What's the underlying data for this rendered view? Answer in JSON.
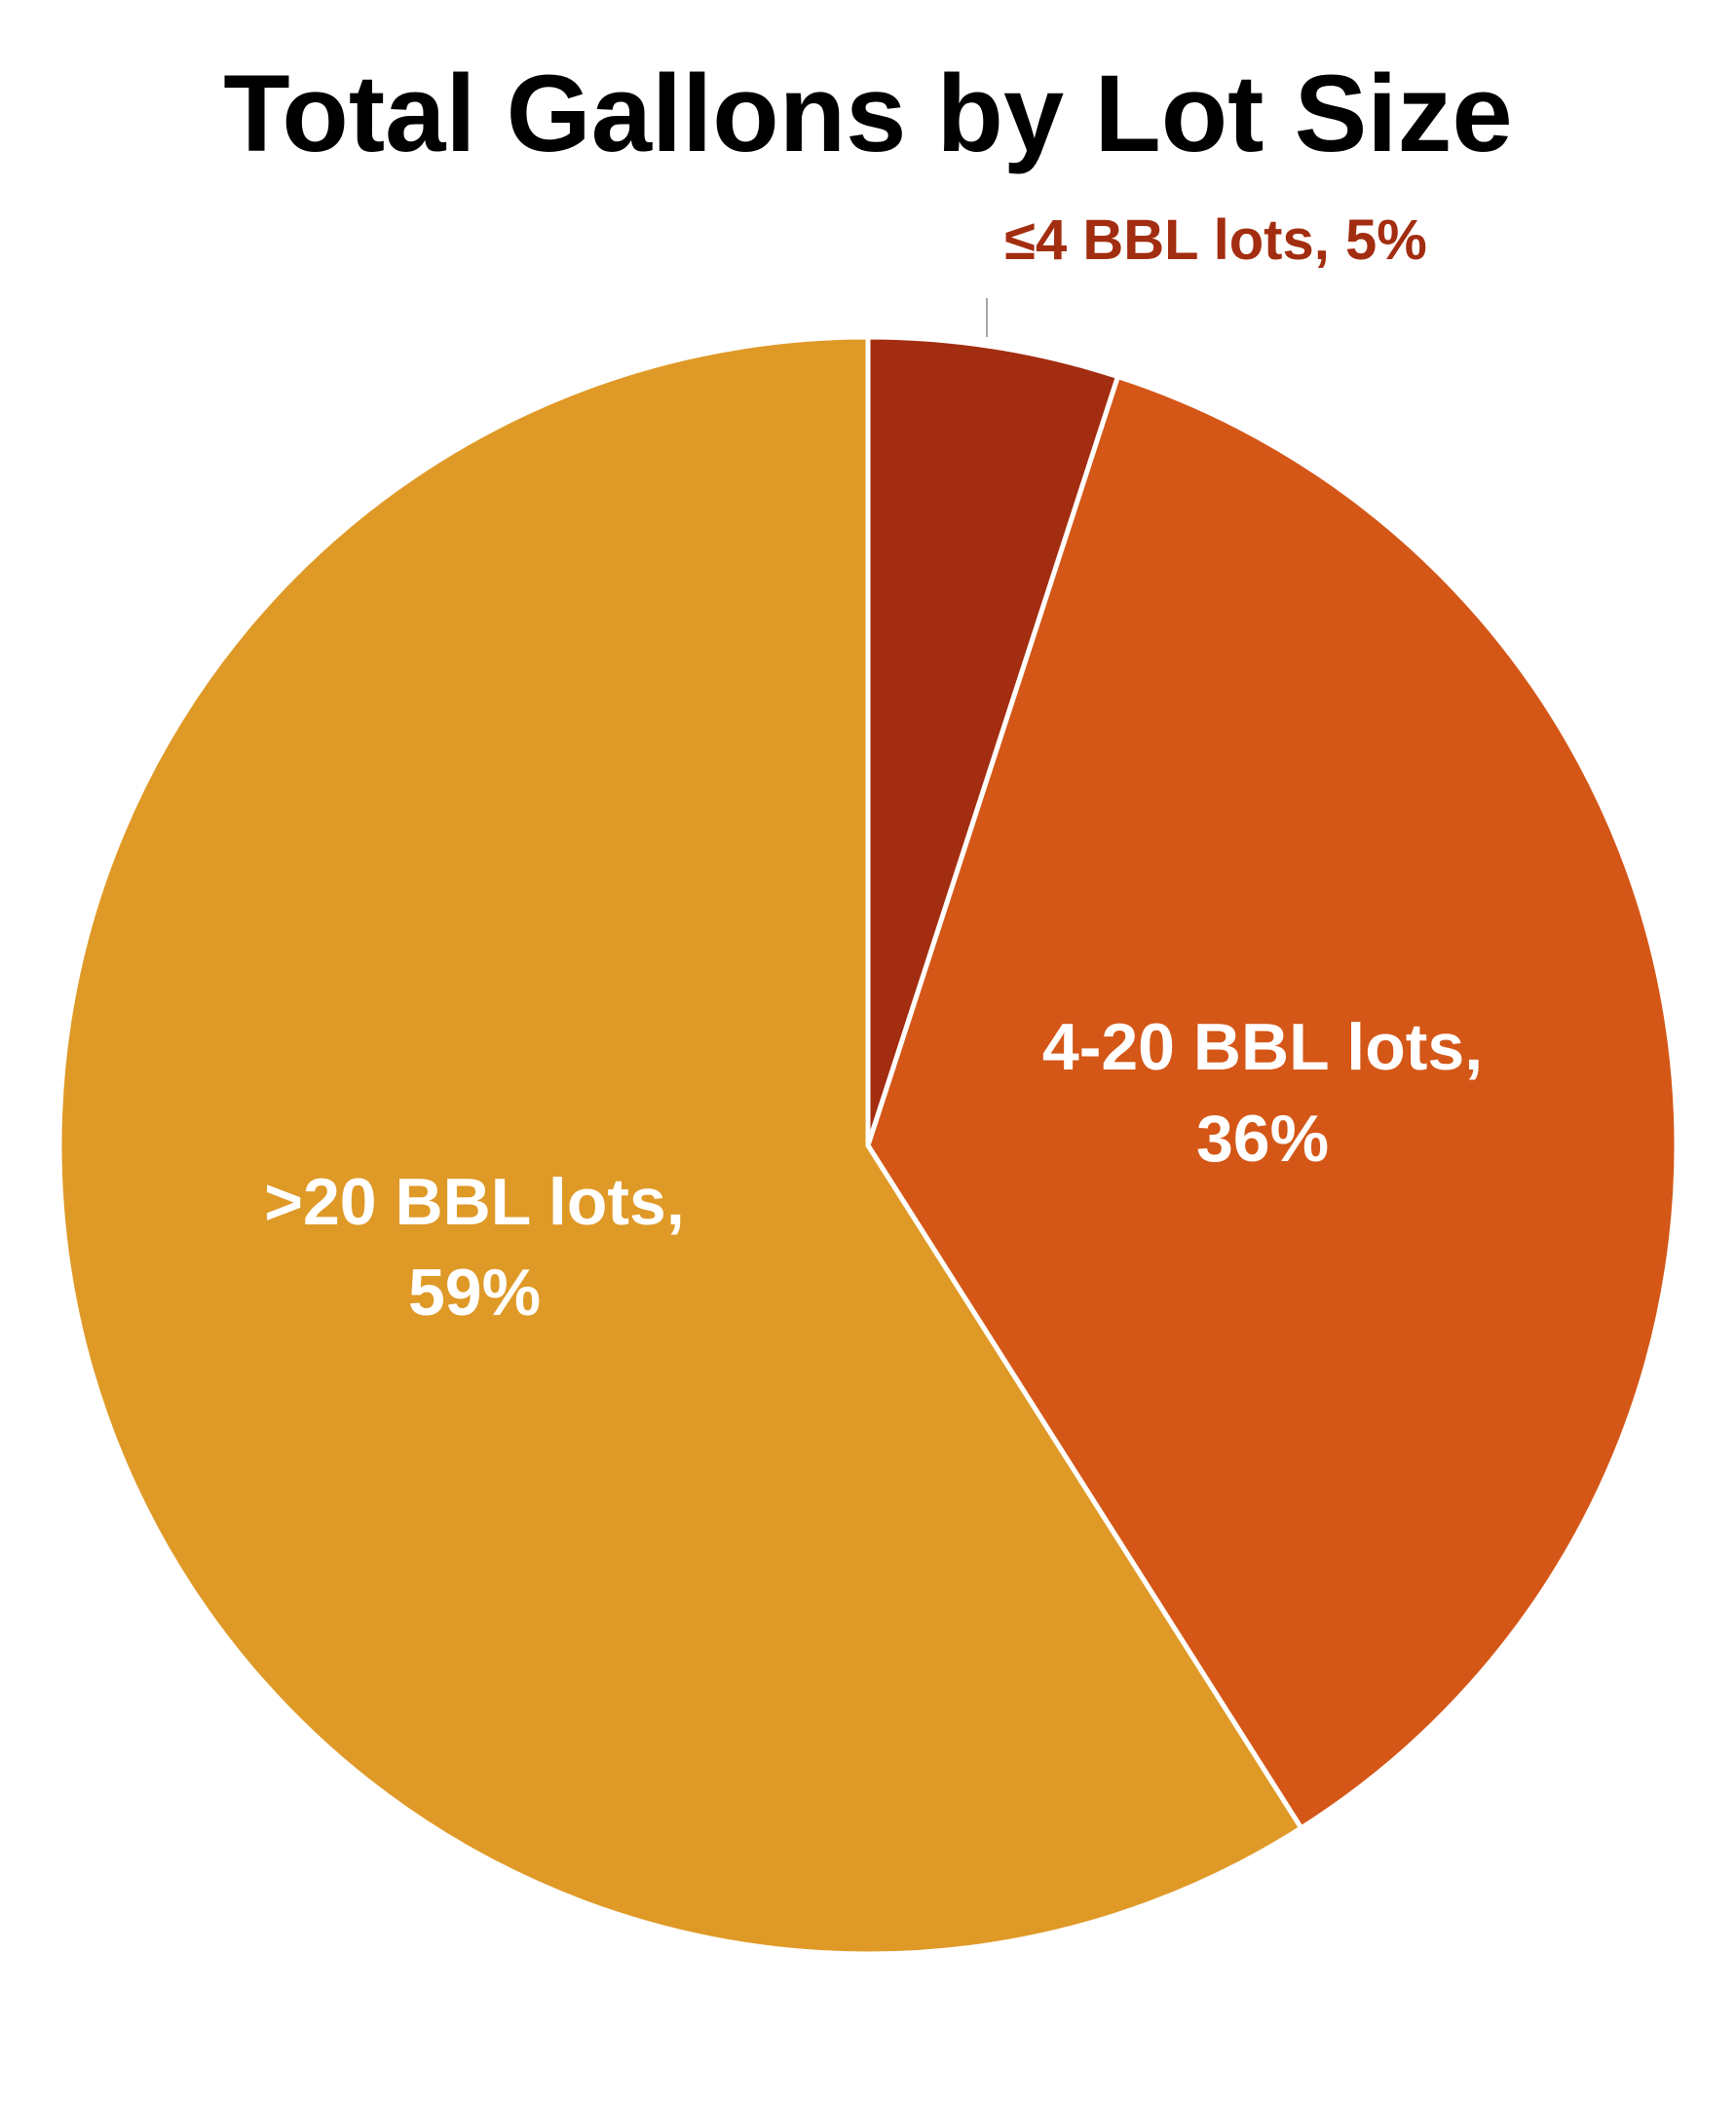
{
  "chart_data": {
    "type": "pie",
    "title": "Total Gallons by Lot Size",
    "slices": [
      {
        "label": "≤4 BBL lots",
        "value": 5,
        "value_label": "5%",
        "color": "#A32D10",
        "label_text_color": "#A32D10",
        "label_position": "outside"
      },
      {
        "label": "4-20 BBL lots",
        "value": 36,
        "value_label": "36%",
        "color": "#D45717",
        "label_text_color": "#FFFFFF",
        "label_position": "inside"
      },
      {
        "label": ">20 BBL lots",
        "value": 59,
        "value_label": "59%",
        "color": "#DF9926",
        "label_text_color": "#FFFFFF",
        "label_position": "inside"
      }
    ],
    "start_angle": "12 o'clock",
    "direction": "clockwise",
    "separator_color": "#FFFFFF",
    "legend": "none"
  }
}
